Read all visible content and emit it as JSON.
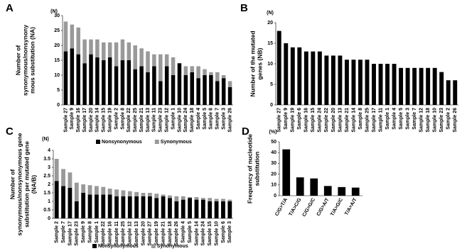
{
  "chart_data": [
    {
      "type": "stacked_bar",
      "panel": "A",
      "unit": "(N)",
      "ylabel": [
        "Number of",
        "synonymous/nonsynony",
        "mous substitution (NA)"
      ],
      "categories": [
        "Sample 27",
        "Sample 9",
        "Sample 16",
        "Sample 17",
        "Sample 20",
        "Sample 14",
        "Sample 15",
        "Sample 19",
        "Sample 2",
        "Sample 8",
        "Sample 22",
        "Sample 25",
        "Sample 21",
        "Sample 13",
        "Sample 11",
        "Sample 23",
        "Sample 12",
        "Sample 1",
        "Sample 10",
        "Sample 24",
        "Sample 18",
        "Sample 4",
        "Sample 5",
        "Sample 6",
        "Sample 7",
        "Sample 3",
        "Sample 26"
      ],
      "series": [
        {
          "name": "Nonsynonymous",
          "color": "#000000",
          "values": [
            18,
            19,
            17,
            14,
            17,
            16,
            15,
            16,
            13,
            15,
            15,
            12,
            13,
            11,
            13,
            8,
            13,
            10,
            14,
            10,
            11,
            9,
            10,
            10,
            8,
            9,
            6
          ]
        },
        {
          "name": "Synonymous",
          "color": "#999999",
          "values": [
            10,
            8,
            9,
            8,
            5,
            6,
            6,
            5,
            8,
            7,
            6,
            8,
            6,
            7,
            4,
            9,
            4,
            6,
            0,
            3,
            2,
            4,
            2,
            1,
            3,
            1,
            2
          ]
        }
      ],
      "ylim": [
        0,
        30
      ],
      "yticks": [
        0,
        5,
        10,
        15,
        20,
        25,
        30
      ]
    },
    {
      "type": "bar",
      "panel": "B",
      "unit": "(N)",
      "ylabel": [
        "Number of the mutated",
        "genes (NB)"
      ],
      "categories": [
        "Sample 27",
        "Sample 9",
        "Sample 19",
        "Sample 6",
        "Sample 16",
        "Sample 15",
        "Sample 24",
        "Sample 22",
        "Sample 20",
        "Sample 13",
        "Sample 21",
        "Sample 14",
        "Sample 8",
        "Sample 25",
        "Sample 17",
        "Sample 11",
        "Sample 1",
        "Sample 4",
        "Sample 5",
        "Sample 3",
        "Sample 7",
        "Sample 12",
        "Sample 18",
        "Sample 10",
        "Sample 23",
        "Sample 2",
        "Sample 26"
      ],
      "values": [
        18,
        15,
        14,
        14,
        13,
        13,
        13,
        12,
        12,
        12,
        11,
        11,
        11,
        11,
        10,
        10,
        10,
        10,
        9,
        9,
        9,
        9,
        9,
        9,
        8,
        6,
        6
      ],
      "color": "#000000",
      "ylim": [
        0,
        20
      ],
      "yticks": [
        0,
        5,
        10,
        15,
        20
      ]
    },
    {
      "type": "stacked_bar",
      "panel": "C",
      "unit": "(N)",
      "ylabel": [
        "Number of",
        "synonymous/nonsynonymous gene",
        "substitution per mutated gene",
        "(NA/B)"
      ],
      "categories": [
        "Sample 2",
        "Sample 7",
        "Sample 17",
        "Sample 23",
        "Sample 9",
        "Sample 8",
        "Sample 1",
        "Sample 22",
        "Sample 16",
        "Sample 11",
        "Sample 25",
        "Sample 12",
        "Sample 13",
        "Sample 20",
        "Sample 27",
        "Sample 19",
        "Sample 21",
        "Sample 18",
        "Sample 26",
        "Sample 4",
        "Sample 5",
        "Sample 14",
        "Sample 24",
        "Sample 15",
        "Sample 10",
        "Sample 6",
        "Sample 3"
      ],
      "series": [
        {
          "name": "Nonsynonymous",
          "color": "#000000",
          "values": [
            2.2,
            1.9,
            1.8,
            1.0,
            1.5,
            1.4,
            1.4,
            1.4,
            1.4,
            1.3,
            1.3,
            1.3,
            1.3,
            1.3,
            1.3,
            1.2,
            1.3,
            1.2,
            1.0,
            1.1,
            1.2,
            1.1,
            1.1,
            1.0,
            1.0,
            1.0,
            1.0
          ]
        },
        {
          "name": "Synonymous",
          "color": "#999999",
          "values": [
            1.3,
            1.0,
            0.9,
            1.1,
            0.5,
            0.55,
            0.5,
            0.45,
            0.35,
            0.4,
            0.35,
            0.3,
            0.25,
            0.2,
            0.2,
            0.25,
            0.1,
            0.15,
            0.3,
            0.2,
            0.05,
            0.15,
            0.1,
            0.2,
            0.15,
            0.15,
            0.1
          ]
        }
      ],
      "ylim": [
        0,
        4
      ],
      "yticks": [
        0,
        0.5,
        1,
        1.5,
        2,
        2.5,
        3,
        3.5,
        4
      ]
    },
    {
      "type": "bar",
      "panel": "D",
      "unit": "(%)",
      "ylabel": [
        "Frequency of nucleotide",
        "substitution"
      ],
      "categories": [
        "C/G>T/A",
        "T/A>C/G",
        "C/G>G/C",
        "C/G>A/T",
        "T/A>G/C",
        "T/A>A/T"
      ],
      "values": [
        43,
        17,
        16,
        9,
        8,
        7.5
      ],
      "color": "#000000",
      "ylim": [
        0,
        50
      ],
      "yticks": [
        0,
        10,
        20,
        30,
        40,
        50
      ]
    }
  ]
}
